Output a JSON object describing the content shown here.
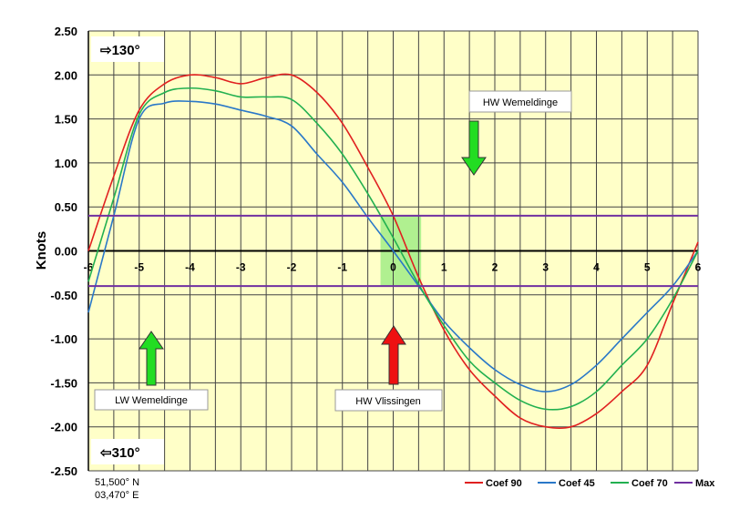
{
  "chart_data": {
    "type": "line",
    "title": "",
    "xlabel": "",
    "ylabel": "Knots",
    "xlim": [
      -6,
      6
    ],
    "ylim": [
      -2.5,
      2.5
    ],
    "grid": true,
    "legend_placement": "bottom-right",
    "plot_background": "#ffffc8",
    "x_ticks": [
      "-6",
      "-5",
      "-4",
      "-3",
      "-2",
      "-1",
      "0",
      "1",
      "2",
      "3",
      "4",
      "5",
      "6"
    ],
    "y_ticks": [
      "2.50",
      "2.00",
      "1.50",
      "1.00",
      "0.50",
      "0.00",
      "-0.50",
      "-1.00",
      "-1.50",
      "-2.00",
      "-2.50"
    ],
    "x": [
      -6,
      -5.5,
      -5,
      -4.5,
      -4,
      -3.5,
      -3,
      -2.5,
      -2,
      -1.5,
      -1,
      -0.5,
      0,
      0.5,
      1,
      1.5,
      2,
      2.5,
      3,
      3.5,
      4,
      4.5,
      5,
      5.5,
      6
    ],
    "series": [
      {
        "name": "Coef 90",
        "color": "#e02020",
        "values": [
          0,
          0.85,
          1.6,
          1.9,
          2.0,
          1.97,
          1.9,
          1.97,
          2.0,
          1.8,
          1.45,
          0.95,
          0.4,
          -0.3,
          -0.9,
          -1.35,
          -1.65,
          -1.9,
          -2.0,
          -2.0,
          -1.85,
          -1.6,
          -1.3,
          -0.6,
          0.1
        ]
      },
      {
        "name": "Coef 45",
        "color": "#2a78c8",
        "values": [
          -0.7,
          0.4,
          1.5,
          1.68,
          1.7,
          1.67,
          1.6,
          1.53,
          1.42,
          1.1,
          0.78,
          0.38,
          0.0,
          -0.4,
          -0.8,
          -1.1,
          -1.35,
          -1.52,
          -1.6,
          -1.52,
          -1.3,
          -1.0,
          -0.7,
          -0.4,
          0
        ]
      },
      {
        "name": "Coef 70",
        "color": "#22b050",
        "values": [
          -0.35,
          0.6,
          1.55,
          1.8,
          1.85,
          1.82,
          1.75,
          1.75,
          1.72,
          1.45,
          1.1,
          0.65,
          0.15,
          -0.38,
          -0.85,
          -1.25,
          -1.5,
          -1.7,
          -1.8,
          -1.77,
          -1.6,
          -1.3,
          -1.0,
          -0.55,
          0
        ]
      },
      {
        "name": "Max",
        "color": "#7030a0",
        "hlines": [
          0.4,
          -0.4
        ]
      }
    ],
    "highlight": {
      "x": [
        -0.25,
        0.55
      ],
      "y": [
        -0.4,
        0.4
      ],
      "color": "#b0f090"
    },
    "annotations": {
      "dir_flood": "⇨130°",
      "dir_ebb": "⇦310°",
      "hw_wemeldinge": "HW Wemeldinge",
      "lw_wemeldinge": "LW Wemeldinge",
      "hw_vlissingen": "HW Vlissingen",
      "lat": "51,500° N",
      "lon": "03,470° E"
    },
    "arrow_colors": {
      "green": "#22dd22",
      "red": "#ee1111"
    }
  }
}
